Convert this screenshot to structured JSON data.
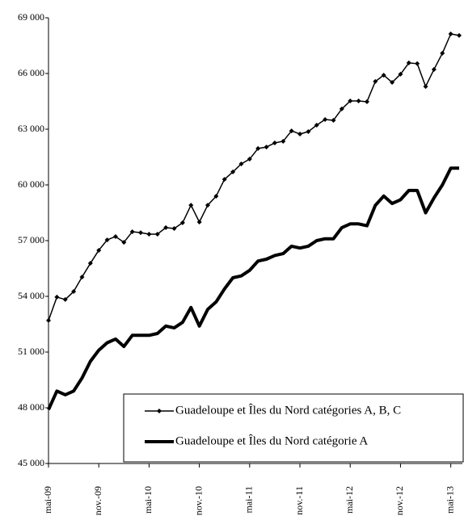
{
  "chart_data": {
    "type": "line",
    "categories": [
      "mai-09",
      null,
      null,
      null,
      null,
      null,
      "nov.-09",
      null,
      null,
      null,
      null,
      null,
      "mai-10",
      null,
      null,
      null,
      null,
      null,
      "nov.-10",
      null,
      null,
      null,
      null,
      null,
      "mai-11",
      null,
      null,
      null,
      null,
      null,
      "nov.-11",
      null,
      null,
      null,
      null,
      null,
      "mai-12",
      null,
      null,
      null,
      null,
      null,
      "nov.-12",
      null,
      null,
      null,
      null,
      null,
      "mai-13",
      null
    ],
    "series": [
      {
        "name": "Guadeloupe et Îles du Nord catégories A, B, C",
        "color": "#000000",
        "marker": "diamond",
        "width": 1.5,
        "values": [
          52700,
          53960,
          53830,
          54260,
          55040,
          55780,
          56480,
          57040,
          57220,
          56910,
          57480,
          57430,
          57350,
          57350,
          57700,
          57650,
          57960,
          58910,
          58000,
          58910,
          59390,
          60300,
          60700,
          61130,
          61390,
          61960,
          62040,
          62260,
          62350,
          62910,
          62740,
          62870,
          63220,
          63520,
          63480,
          64090,
          64520,
          64520,
          64480,
          65570,
          65910,
          65520,
          65960,
          66570,
          66530,
          65300,
          66220,
          67090,
          68130,
          68050
        ]
      },
      {
        "name": "Guadeloupe et Îles du Nord catégorie A",
        "color": "#000000",
        "marker": "none",
        "width": 4,
        "values": [
          47900,
          48900,
          48700,
          48900,
          49600,
          50500,
          51100,
          51500,
          51700,
          51300,
          51900,
          51900,
          51900,
          52000,
          52400,
          52300,
          52600,
          53400,
          52400,
          53300,
          53700,
          54400,
          55000,
          55100,
          55400,
          55900,
          56000,
          56200,
          56300,
          56700,
          56600,
          56700,
          57000,
          57100,
          57100,
          57700,
          57900,
          57900,
          57800,
          58900,
          59400,
          59000,
          59200,
          59700,
          59700,
          58500,
          59300,
          60000,
          60900,
          60900
        ]
      }
    ],
    "ylim": [
      45000,
      69000
    ],
    "yticks": [
      {
        "value": 45000,
        "label": "45 000"
      },
      {
        "value": 48000,
        "label": "48 000"
      },
      {
        "value": 51000,
        "label": "51 000"
      },
      {
        "value": 54000,
        "label": "54 000"
      },
      {
        "value": 57000,
        "label": "57 000"
      },
      {
        "value": 60000,
        "label": "60 000"
      },
      {
        "value": 63000,
        "label": "63 000"
      },
      {
        "value": 66000,
        "label": "66 000"
      },
      {
        "value": 69000,
        "label": "69 000"
      }
    ],
    "grid": false,
    "legend": "lower right"
  }
}
